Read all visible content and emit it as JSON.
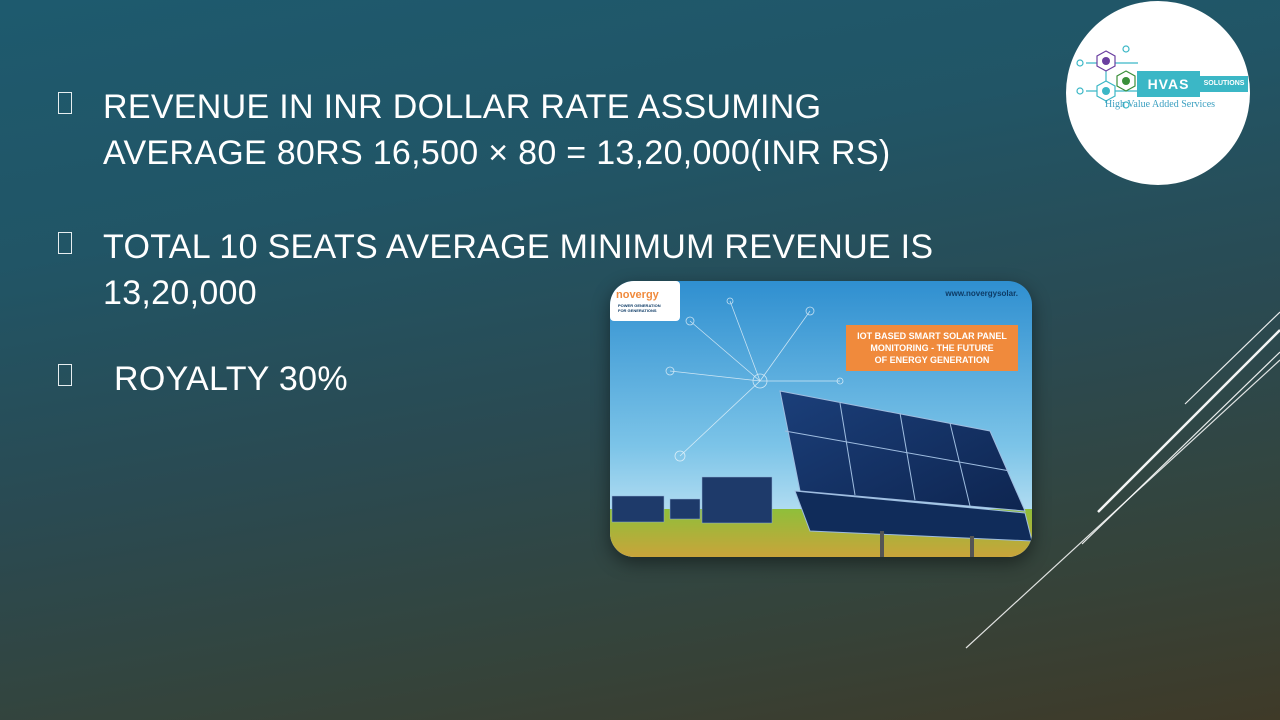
{
  "bullets": [
    {
      "text": "Revenue in INR dollar rate assuming\naverage 80rs 16,500 × 80 = 13,20,000(INR Rs)"
    },
    {
      "text": "Total 10 seats average minimum revenue is\n13,20,000"
    },
    {
      "text": "Royalty 30%"
    }
  ],
  "logo": {
    "name": "HVAS",
    "suffix": "SOLUTIONS",
    "tagline": "High Value Added Services"
  },
  "image": {
    "url_text": "www.novergysolar.",
    "brand": "novergy",
    "brand_sub": "Power Generation for Generations",
    "banner_lines": [
      "IOT Based Smart Solar Panel",
      "Monitoring - The Future",
      "of Energy Generation"
    ]
  },
  "colors": {
    "accent": "#3bb7c6",
    "banner": "#f08a3c",
    "background_top": "#1e5a6e",
    "background_bottom": "#3f3a28"
  }
}
